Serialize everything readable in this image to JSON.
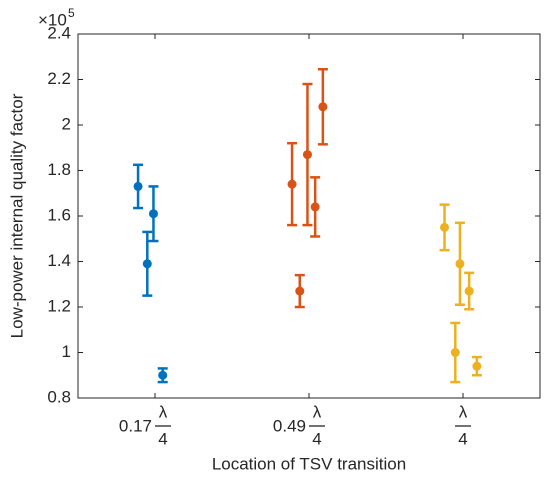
{
  "chart_data": {
    "type": "errorbar",
    "y_label": "Low-power internal quality factor",
    "x_label": "Location of TSV transition",
    "y_multiplier": {
      "base": "×10",
      "exponent": "5"
    },
    "categories": [
      {
        "prefix": "0.17",
        "numerator": "λ",
        "denominator": "4"
      },
      {
        "prefix": "0.49",
        "numerator": "λ",
        "denominator": "4"
      },
      {
        "numerator": "λ",
        "denominator": "4"
      }
    ],
    "xlim": [
      0.5,
      3.5
    ],
    "xticks": [
      1,
      2,
      3
    ],
    "ylim": [
      0.8,
      2.4
    ],
    "yticks": [
      0.8,
      1,
      1.2,
      1.4,
      1.6,
      1.8,
      2,
      2.2,
      2.4
    ],
    "grid": false,
    "series": [
      {
        "color": "#0072bd",
        "x": [
          0.89,
          0.95,
          0.99,
          1.05
        ],
        "values": [
          1.73,
          1.39,
          1.61,
          0.9
        ],
        "errors": [
          0.095,
          0.14,
          0.12,
          0.03
        ]
      },
      {
        "color": "#d95319",
        "x": [
          1.89,
          1.94,
          1.99,
          2.04,
          2.09
        ],
        "values": [
          1.74,
          1.27,
          1.87,
          1.64,
          2.08
        ],
        "errors": [
          0.18,
          0.07,
          0.31,
          0.13,
          0.165
        ]
      },
      {
        "color": "#edb120",
        "x": [
          2.88,
          2.95,
          2.98,
          3.04,
          3.09
        ],
        "values": [
          1.55,
          1.0,
          1.39,
          1.27,
          0.94
        ],
        "errors": [
          0.1,
          0.13,
          0.18,
          0.08,
          0.04
        ]
      }
    ]
  }
}
